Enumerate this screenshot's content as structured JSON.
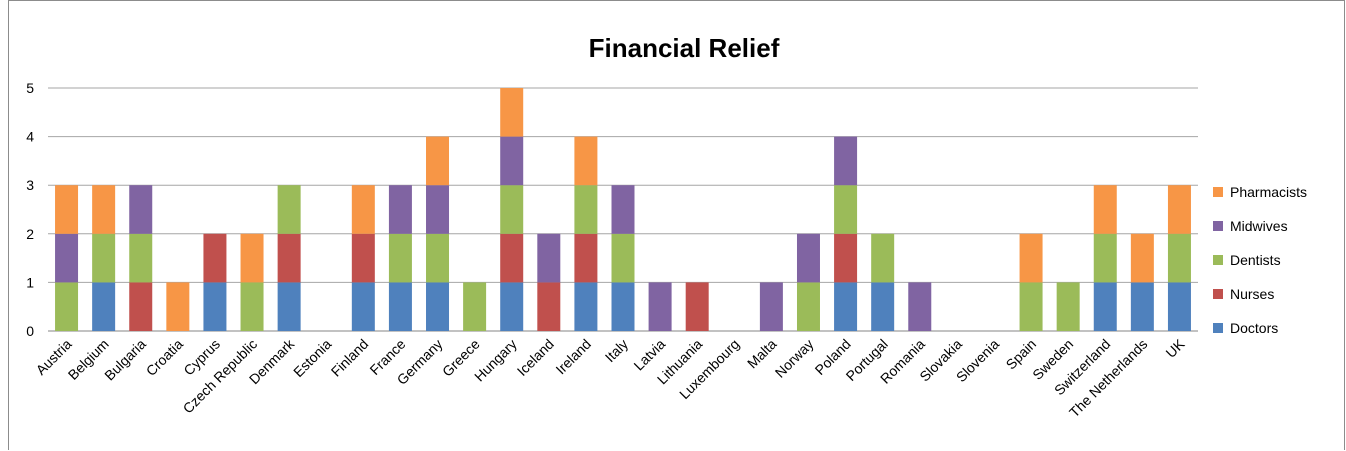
{
  "chart_data": {
    "type": "bar",
    "stacked": true,
    "title": "Financial Relief",
    "xlabel": "",
    "ylabel": "",
    "ylim": [
      0,
      5
    ],
    "yticks": [
      0,
      1,
      2,
      3,
      4,
      5
    ],
    "grid": true,
    "legend_position": "right",
    "categories": [
      "Austria",
      "Belgium",
      "Bulgaria",
      "Croatia",
      "Cyprus",
      "Czech Republic",
      "Denmark",
      "Estonia",
      "Finland",
      "France",
      "Germany",
      "Greece",
      "Hungary",
      "Iceland",
      "Ireland",
      "Italy",
      "Latvia",
      "Lithuania",
      "Luxembourg",
      "Malta",
      "Norway",
      "Poland",
      "Portugal",
      "Romania",
      "Slovakia",
      "Slovenia",
      "Spain",
      "Sweden",
      "Switzerland",
      "The Netherlands",
      "UK"
    ],
    "series": [
      {
        "name": "Doctors",
        "color": "#4f81bd",
        "values": [
          0,
          1,
          0,
          0,
          1,
          0,
          1,
          0,
          1,
          1,
          1,
          0,
          1,
          0,
          1,
          1,
          0,
          0,
          0,
          0,
          0,
          1,
          1,
          0,
          0,
          0,
          0,
          0,
          1,
          1,
          1
        ]
      },
      {
        "name": "Nurses",
        "color": "#c0504d",
        "values": [
          0,
          0,
          1,
          0,
          1,
          0,
          1,
          0,
          1,
          0,
          0,
          0,
          1,
          1,
          1,
          0,
          0,
          1,
          0,
          0,
          0,
          1,
          0,
          0,
          0,
          0,
          0,
          0,
          0,
          0,
          0
        ]
      },
      {
        "name": "Dentists",
        "color": "#9bbb59",
        "values": [
          1,
          1,
          1,
          0,
          0,
          1,
          1,
          0,
          0,
          1,
          1,
          1,
          1,
          0,
          1,
          1,
          0,
          0,
          0,
          0,
          1,
          1,
          1,
          0,
          0,
          0,
          1,
          1,
          1,
          0,
          1
        ]
      },
      {
        "name": "Midwives",
        "color": "#8064a2",
        "values": [
          1,
          0,
          1,
          0,
          0,
          0,
          0,
          0,
          0,
          1,
          1,
          0,
          1,
          1,
          0,
          1,
          1,
          0,
          0,
          1,
          1,
          1,
          0,
          1,
          0,
          0,
          0,
          0,
          0,
          0,
          0
        ]
      },
      {
        "name": "Pharmacists",
        "color": "#f79646",
        "values": [
          1,
          1,
          0,
          1,
          0,
          1,
          0,
          0,
          1,
          0,
          1,
          0,
          1,
          0,
          1,
          0,
          0,
          0,
          0,
          0,
          0,
          0,
          0,
          0,
          0,
          0,
          1,
          0,
          1,
          1,
          1
        ]
      }
    ]
  }
}
